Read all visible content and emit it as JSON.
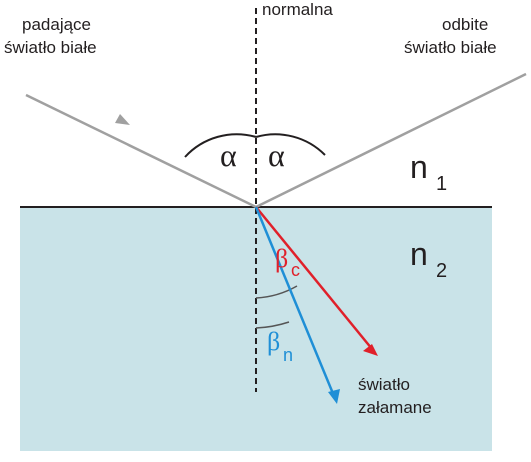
{
  "labels": {
    "incident_line1": "padające",
    "incident_line2": "światło białe",
    "normal": "normalna",
    "reflected_line1": "odbite",
    "reflected_line2": "światło białe",
    "alpha_left": "α",
    "alpha_right": "α",
    "n1_base": "n",
    "n1_sub": "1",
    "n2_base": "n",
    "n2_sub": "2",
    "beta_c_base": "β",
    "beta_c_sub": "c",
    "beta_n_base": "β",
    "beta_n_sub": "n",
    "refracted_line1": "światło",
    "refracted_line2": "załamane"
  },
  "colors": {
    "medium2_fill": "#c9e3e8",
    "incident_ray": "#a0a0a0",
    "reflected_ray": "#a0a0a0",
    "red_ray": "#e0202a",
    "blue_ray": "#1f8fd6",
    "text": "#231f20",
    "interface": "#231f20",
    "normal_line": "#231f20"
  },
  "icons": {
    "incident_arrow": "arrow-head-icon",
    "red_arrow": "arrow-head-icon",
    "blue_arrow": "arrow-head-icon"
  }
}
